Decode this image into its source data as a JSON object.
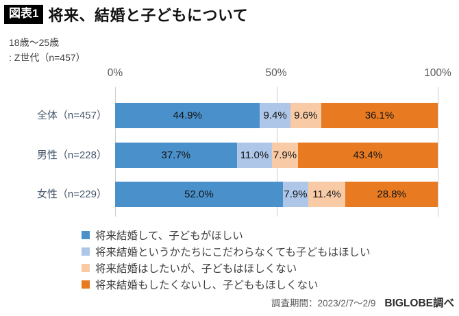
{
  "header": {
    "badge": "図表1",
    "title": "将来、結婚と子どもについて",
    "subtitle_line1": "18歳～25歳",
    "subtitle_line2": ": Z世代（n=457）"
  },
  "footer": {
    "survey_period": "調査期間：2023/2/7～2/9",
    "source": "BIGLOBE調べ"
  },
  "chart_data": {
    "type": "bar",
    "orientation": "horizontal",
    "stacked": true,
    "title": "将来、結婚と子どもについて",
    "categories": [
      "全体（n=457）",
      "男性（n=228）",
      "女性（n=229）"
    ],
    "series": [
      {
        "name": "将来結婚して、子どもがほしい",
        "color": "#4a90cb",
        "values": [
          44.9,
          37.7,
          52.0
        ]
      },
      {
        "name": "将来結婚というかたちにこだわらなくても子どもはほしい",
        "color": "#aec7e8",
        "values": [
          9.4,
          11.0,
          7.9
        ]
      },
      {
        "name": "将来結婚はしたいが、子どもはほしくない",
        "color": "#f8cba6",
        "values": [
          9.6,
          7.9,
          11.4
        ]
      },
      {
        "name": "将来結婚もしたくないし、子どももほしくない",
        "color": "#e87a22",
        "values": [
          36.1,
          43.4,
          28.8
        ]
      }
    ],
    "x_axis": {
      "ticks": [
        "0%",
        "50%",
        "100%"
      ],
      "range": [
        0,
        100
      ]
    },
    "value_suffix": "%",
    "grid": "vertical",
    "legend_position": "bottom"
  }
}
